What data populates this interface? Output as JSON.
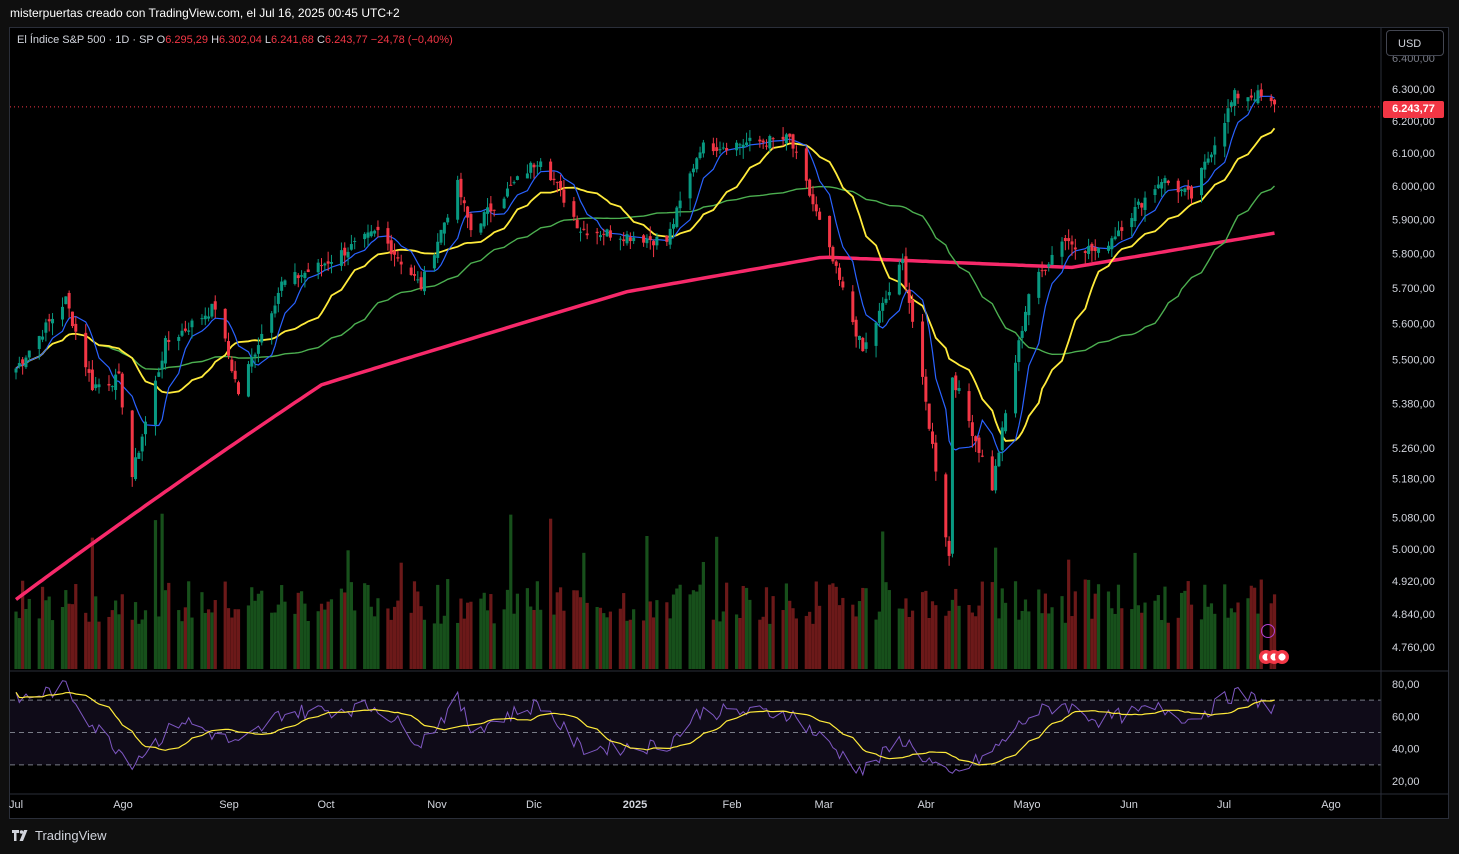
{
  "header": {
    "caption": "misterpuertas creado con TradingView.com, el Jul 16, 2025 00:45 UTC+2"
  },
  "legend": {
    "symbol": "El Índice S&P 500 · 1D · SP",
    "open_label": "O",
    "open": "6.295,29",
    "high_label": "H",
    "high": "6.302,04",
    "low_label": "L",
    "low": "6.241,68",
    "close_label": "C",
    "close": "6.243,77",
    "change": "−24,78 (−0,40%)"
  },
  "currency_button": "USD",
  "last_price_tag": "6.243,77",
  "footer": {
    "brand": "TradingView"
  },
  "colors": {
    "up": "#089981",
    "down": "#f23645",
    "ma_fast": "#2962ff",
    "ma_20": "#ffeb3b",
    "ma_50": "#4caf50",
    "ma_200": "#f7296a",
    "rsi_line": "#7e57c2",
    "rsi_ma": "#ffeb3b"
  },
  "chart_data": {
    "type": "candlestick",
    "price_axis": {
      "scale": "log",
      "ticks": [
        "6.300,00",
        "6.200,00",
        "6.100,00",
        "6.000,00",
        "5.900,00",
        "5.800,00",
        "5.700,00",
        "5.600,00",
        "5.500,00",
        "5.380,00",
        "5.260,00",
        "5.180,00",
        "5.080,00",
        "5.000,00",
        "4.920,00",
        "4.840,00",
        "4.760,00"
      ],
      "tick_values": [
        6300,
        6200,
        6100,
        6000,
        5900,
        5800,
        5700,
        5600,
        5500,
        5380,
        5260,
        5180,
        5080,
        5000,
        4920,
        4840,
        4760
      ],
      "partial_top_tick": "6.400,00"
    },
    "time_axis": {
      "labels": [
        "Jul",
        "Ago",
        "Sep",
        "Oct",
        "Nov",
        "Dic",
        "2025",
        "Feb",
        "Mar",
        "Abr",
        "Mayo",
        "Jun",
        "Jul",
        "Ago"
      ]
    },
    "close_path": [
      [
        "2024-07-01",
        5475
      ],
      [
        "2024-07-16",
        5667
      ],
      [
        "2024-07-24",
        5427
      ],
      [
        "2024-08-01",
        5446
      ],
      [
        "2024-08-05",
        5186
      ],
      [
        "2024-08-15",
        5543
      ],
      [
        "2024-08-30",
        5648
      ],
      [
        "2024-09-06",
        5408
      ],
      [
        "2024-09-19",
        5713
      ],
      [
        "2024-09-30",
        5762
      ],
      [
        "2024-10-18",
        5864
      ],
      [
        "2024-10-31",
        5705
      ],
      [
        "2024-11-11",
        6001
      ],
      [
        "2024-11-15",
        5870
      ],
      [
        "2024-12-06",
        6090
      ],
      [
        "2024-12-18",
        5872
      ],
      [
        "2025-01-13",
        5836
      ],
      [
        "2025-01-23",
        6118
      ],
      [
        "2025-02-19",
        6144
      ],
      [
        "2025-03-13",
        5521
      ],
      [
        "2025-03-25",
        5776
      ],
      [
        "2025-04-08",
        4982
      ],
      [
        "2025-04-09",
        5456
      ],
      [
        "2025-04-21",
        5158
      ],
      [
        "2025-05-02",
        5686
      ],
      [
        "2025-05-12",
        5844
      ],
      [
        "2025-05-23",
        5802
      ],
      [
        "2025-06-11",
        6022
      ],
      [
        "2025-06-20",
        5967
      ],
      [
        "2025-07-03",
        6279
      ],
      [
        "2025-07-10",
        6280
      ],
      [
        "2025-07-15",
        6243.77
      ]
    ],
    "moving_averages": [
      {
        "name": "MA200",
        "path": [
          [
            "2024-07-01",
            4875
          ],
          [
            "2024-10-01",
            5430
          ],
          [
            "2025-01-01",
            5690
          ],
          [
            "2025-03-01",
            5790
          ],
          [
            "2025-05-15",
            5760
          ],
          [
            "2025-07-15",
            5860
          ]
        ]
      }
    ],
    "rsi": {
      "axis_ticks": [
        "80,00",
        "60,00",
        "40,00",
        "20,00"
      ],
      "tick_values": [
        80,
        60,
        40,
        20
      ],
      "upper_band": 70,
      "middle": 50,
      "lower_band": 30,
      "path": [
        [
          "2024-07-01",
          70
        ],
        [
          "2024-07-16",
          78
        ],
        [
          "2024-07-24",
          55
        ],
        [
          "2024-08-05",
          32
        ],
        [
          "2024-08-20",
          58
        ],
        [
          "2024-09-06",
          42
        ],
        [
          "2024-09-19",
          62
        ],
        [
          "2024-10-18",
          66
        ],
        [
          "2024-10-31",
          44
        ],
        [
          "2024-11-11",
          70
        ],
        [
          "2024-11-15",
          52
        ],
        [
          "2024-12-06",
          68
        ],
        [
          "2024-12-18",
          40
        ],
        [
          "2025-01-13",
          42
        ],
        [
          "2025-01-23",
          63
        ],
        [
          "2025-02-19",
          62
        ],
        [
          "2025-03-13",
          26
        ],
        [
          "2025-03-25",
          46
        ],
        [
          "2025-04-08",
          22
        ],
        [
          "2025-04-21",
          38
        ],
        [
          "2025-05-02",
          60
        ],
        [
          "2025-05-12",
          68
        ],
        [
          "2025-05-23",
          58
        ],
        [
          "2025-06-11",
          65
        ],
        [
          "2025-06-20",
          58
        ],
        [
          "2025-07-03",
          74
        ],
        [
          "2025-07-10",
          70
        ],
        [
          "2025-07-15",
          64
        ]
      ]
    }
  }
}
